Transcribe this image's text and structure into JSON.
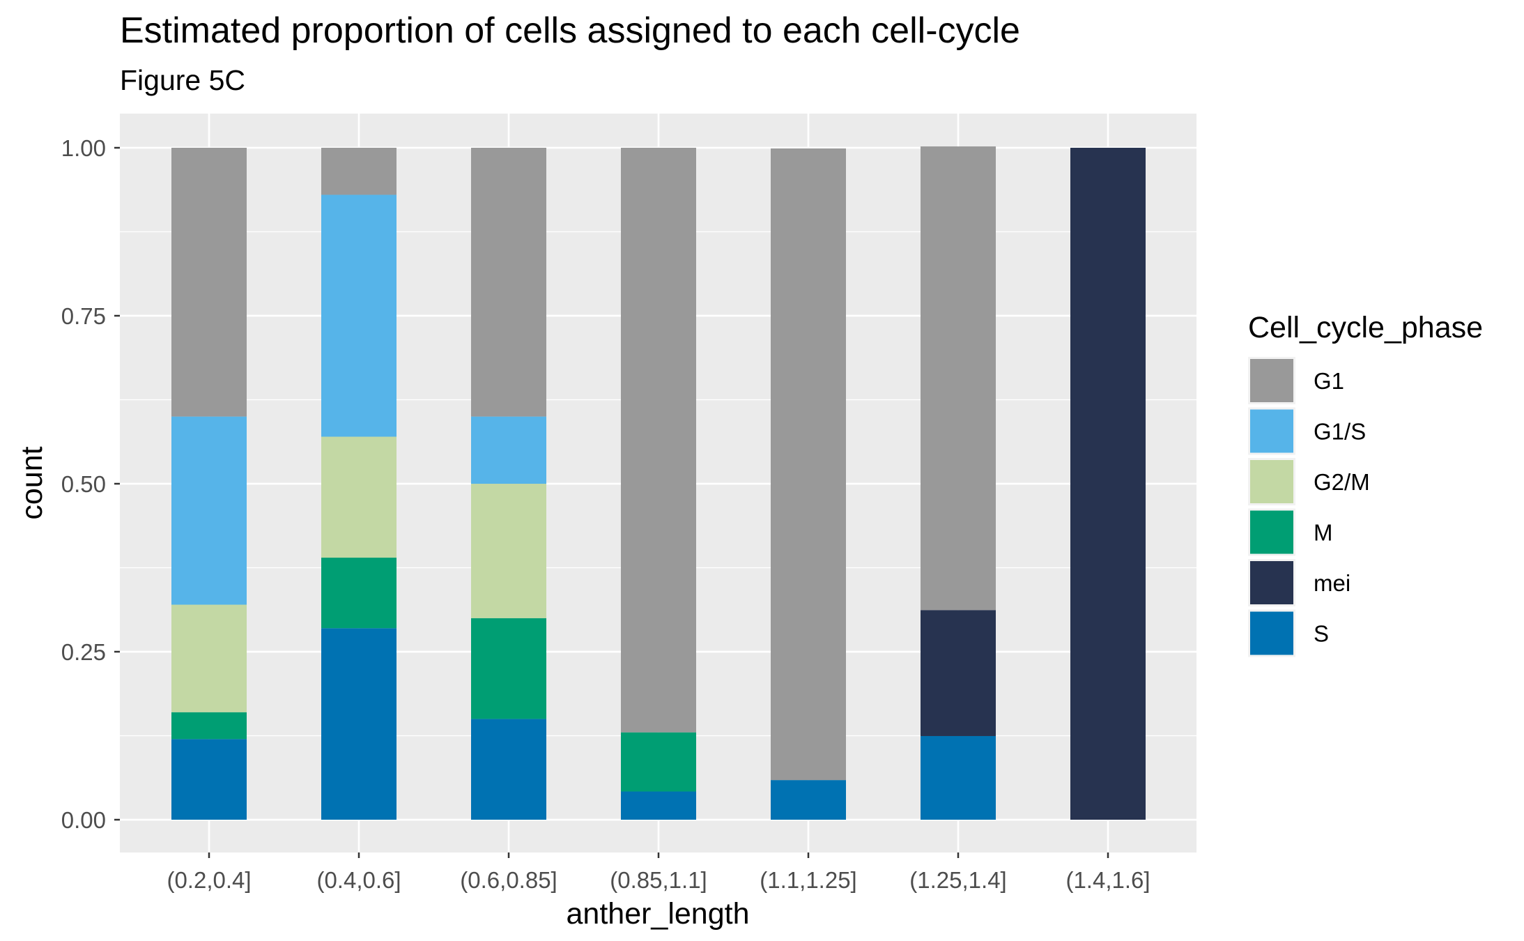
{
  "chart_data": {
    "type": "bar",
    "stacked": true,
    "title": "Estimated proportion of cells assigned to each cell-cycle",
    "subtitle": "Figure 5C",
    "xlabel": "anther_length",
    "ylabel": "count",
    "ylim": [
      0,
      1
    ],
    "yticks": [
      "0.00",
      "0.25",
      "0.50",
      "0.75",
      "1.00"
    ],
    "ytick_values": [
      0,
      0.25,
      0.5,
      0.75,
      1.0
    ],
    "grid": true,
    "legend_title": "Cell_cycle_phase",
    "legend_position": "right",
    "categories": [
      "(0.2,0.4]",
      "(0.4,0.6]",
      "(0.6,0.85]",
      "(0.85,1.1]",
      "(1.1,1.25]",
      "(1.25,1.4]",
      "(1.4,1.6]"
    ],
    "stack_order_bottom_to_top": [
      "S",
      "mei",
      "M",
      "G2/M",
      "G1/S",
      "G1"
    ],
    "series": [
      {
        "name": "G1",
        "color": "#999999",
        "values": [
          0.4,
          0.07,
          0.4,
          0.87,
          0.94,
          0.69,
          0.0
        ]
      },
      {
        "name": "G1/S",
        "color": "#56B4E9",
        "values": [
          0.28,
          0.36,
          0.1,
          0.0,
          0.0,
          0.0,
          0.0
        ]
      },
      {
        "name": "G2/M",
        "color": "#C3D8A4",
        "values": [
          0.16,
          0.18,
          0.2,
          0.0,
          0.0,
          0.0,
          0.0
        ]
      },
      {
        "name": "M",
        "color": "#009E73",
        "values": [
          0.04,
          0.105,
          0.15,
          0.088,
          0.0,
          0.0,
          0.0
        ]
      },
      {
        "name": "mei",
        "color": "#273350",
        "values": [
          0.0,
          0.0,
          0.0,
          0.0,
          0.0,
          0.1875,
          1.0
        ]
      },
      {
        "name": "S",
        "color": "#0072B2",
        "values": [
          0.12,
          0.285,
          0.15,
          0.042,
          0.059,
          0.1245,
          0.0
        ]
      }
    ]
  }
}
